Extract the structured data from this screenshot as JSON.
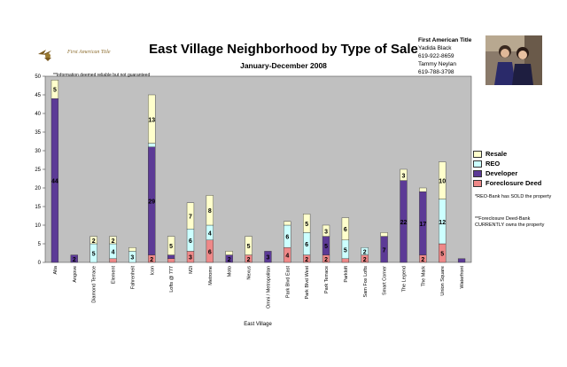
{
  "header": {
    "logo_text": "First American Title",
    "title": "East Village Neighborhood by Type of Sale",
    "subtitle": "January-December 2008",
    "disclaimer": "**Information deemed reliable but not guaranteed"
  },
  "contact": {
    "company": "First American Title",
    "name1": "Yadida Black",
    "phone1": "619-922-8659",
    "name2": "Tammy Neylan",
    "phone2": "619-788-3798"
  },
  "footnotes": {
    "reo": "*REO-Bank has SOLD the property",
    "foreclosure": "**Foreclosure Deed-Bank CURRENTLY owns the property"
  },
  "colors": {
    "Resale": "#ffffcc",
    "REO": "#ccffff",
    "Developer": "#5c3a96",
    "Foreclosure Deed": "#ee8888",
    "plot_bg": "#c0c0c0"
  },
  "chart_data": {
    "type": "bar",
    "stacked": true,
    "xlabel": "East Village",
    "ylabel": "",
    "ylim": [
      0,
      50
    ],
    "yticks": [
      0,
      5,
      10,
      15,
      20,
      25,
      30,
      35,
      40,
      45,
      50
    ],
    "grid": false,
    "legend_position": "right",
    "categories": [
      "Alta",
      "Angove",
      "Diamond Terrace",
      "Element",
      "Fahrenheit",
      "Icon",
      "Lofts @ 777",
      "M2i",
      "Metrome",
      "Moto",
      "Nexus",
      "Omni / Metropolitan",
      "Park Blvd East",
      "Park Blvd West",
      "Park Terrace",
      "Parkloft",
      "Sam Fox Lofts",
      "Smart Corner",
      "The Legend",
      "The Mark",
      "Union Square",
      "Waterfront"
    ],
    "series": [
      {
        "name": "Foreclosure Deed",
        "values": [
          0,
          0,
          0,
          1,
          0,
          2,
          1,
          3,
          6,
          0,
          2,
          0,
          4,
          2,
          2,
          1,
          2,
          0,
          0,
          2,
          5,
          0
        ]
      },
      {
        "name": "Developer",
        "values": [
          44,
          2,
          0,
          0,
          0,
          29,
          1,
          0,
          0,
          2,
          0,
          3,
          0,
          0,
          5,
          0,
          0,
          7,
          22,
          17,
          0,
          1
        ]
      },
      {
        "name": "REO",
        "values": [
          0,
          0,
          5,
          4,
          3,
          1,
          0,
          6,
          4,
          0,
          0,
          0,
          6,
          6,
          0,
          5,
          2,
          0,
          0,
          0,
          12,
          0
        ]
      },
      {
        "name": "Resale",
        "values": [
          5,
          0,
          2,
          2,
          1,
          13,
          5,
          7,
          8,
          1,
          5,
          0,
          1,
          5,
          3,
          6,
          0,
          1,
          3,
          1,
          10,
          0
        ]
      }
    ]
  }
}
